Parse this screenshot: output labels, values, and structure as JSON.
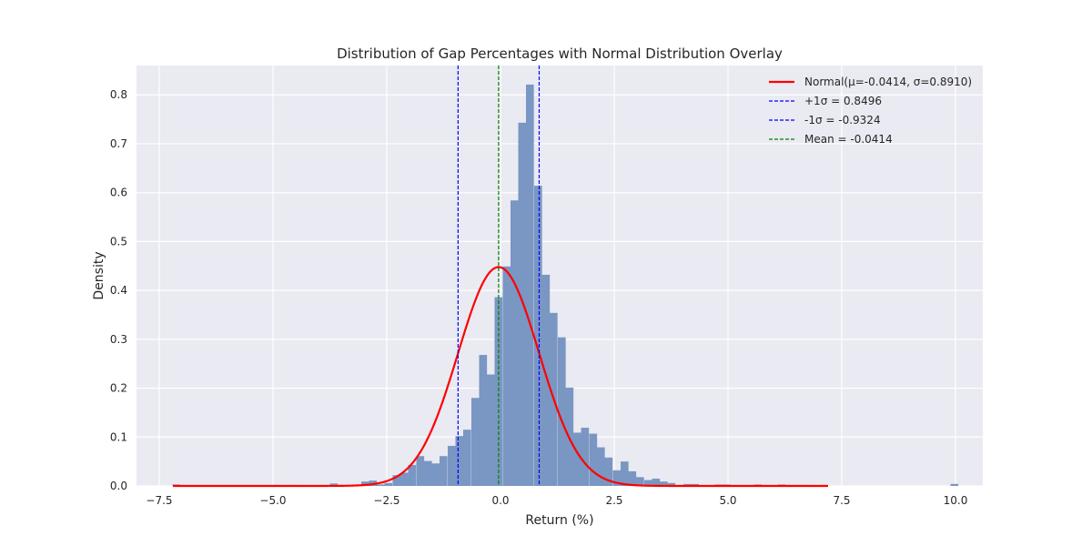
{
  "chart_data": {
    "type": "bar",
    "title": "Distribution of Gap Percentages with Normal Distribution Overlay",
    "xlabel": "Return (%)",
    "ylabel": "Density",
    "xlim": [
      -8.0,
      10.6
    ],
    "ylim": [
      0,
      0.86
    ],
    "xticks": [
      -7.5,
      -5.0,
      -2.5,
      0.0,
      2.5,
      5.0,
      7.5,
      10.0
    ],
    "xtick_labels": [
      "−7.5",
      "−5.0",
      "−2.5",
      "0.0",
      "2.5",
      "5.0",
      "7.5",
      "10.0"
    ],
    "yticks": [
      0.0,
      0.1,
      0.2,
      0.3,
      0.4,
      0.5,
      0.6,
      0.7,
      0.8
    ],
    "ytick_labels": [
      "0.0",
      "0.1",
      "0.2",
      "0.3",
      "0.4",
      "0.5",
      "0.6",
      "0.7",
      "0.8"
    ],
    "grid": true,
    "legend_position": "top-right",
    "colors": {
      "background": "#eaeaf2",
      "grid": "#ffffff",
      "bars": "#7a96c2",
      "normal_curve": "#ff0000",
      "sigma_lines": "#0000ff",
      "mean_line": "#008000"
    },
    "histogram": {
      "bin_width": 0.1729,
      "bin_starts": [
        -7.21,
        -7.04,
        -6.86,
        -6.69,
        -6.52,
        -6.35,
        -6.17,
        -6.0,
        -5.83,
        -5.66,
        -5.48,
        -5.31,
        -5.14,
        -4.96,
        -4.79,
        -4.62,
        -4.45,
        -4.27,
        -4.1,
        -3.93,
        -3.75,
        -3.58,
        -3.41,
        -3.24,
        -3.06,
        -2.89,
        -2.72,
        -2.55,
        -2.37,
        -2.2,
        -2.03,
        -1.85,
        -1.68,
        -1.51,
        -1.34,
        -1.16,
        -0.99,
        -0.82,
        -0.64,
        -0.47,
        -0.3,
        -0.13,
        0.05,
        0.22,
        0.39,
        0.56,
        0.74,
        0.91,
        1.08,
        1.26,
        1.43,
        1.6,
        1.77,
        1.95,
        2.12,
        2.29,
        2.47,
        2.64,
        2.81,
        2.98,
        3.16,
        3.33,
        3.5,
        3.67,
        3.85,
        4.02,
        4.19,
        4.37,
        4.54,
        4.71,
        4.88,
        5.06,
        5.23,
        5.4,
        5.57,
        5.75,
        5.92,
        6.09,
        6.27,
        6.44,
        6.61,
        6.78,
        6.96,
        7.13,
        7.3,
        7.47,
        7.65,
        7.82,
        7.99,
        8.17,
        8.34,
        8.51,
        8.68,
        8.86,
        9.03,
        9.2,
        9.37,
        9.55,
        9.72,
        9.89
      ],
      "densities": [
        0.003,
        0,
        0,
        0,
        0,
        0,
        0,
        0,
        0,
        0,
        0,
        0,
        0,
        0.002,
        0,
        0.002,
        0,
        0,
        0,
        0.002,
        0.005,
        0,
        0,
        0.002,
        0.009,
        0.011,
        0.003,
        0.006,
        0.022,
        0.027,
        0.043,
        0.061,
        0.051,
        0.046,
        0.061,
        0.082,
        0.102,
        0.115,
        0.18,
        0.268,
        0.228,
        0.386,
        0.449,
        0.584,
        0.743,
        0.821,
        0.614,
        0.432,
        0.354,
        0.304,
        0.201,
        0.109,
        0.119,
        0.107,
        0.079,
        0.058,
        0.032,
        0.05,
        0.03,
        0.018,
        0.012,
        0.015,
        0.009,
        0.006,
        0.002,
        0.004,
        0.004,
        0,
        0.001,
        0.003,
        0.003,
        0,
        0,
        0,
        0.003,
        0,
        0,
        0.003,
        0.002,
        0.002,
        0.002,
        0,
        0,
        0,
        0,
        0,
        0,
        0,
        0,
        0,
        0,
        0,
        0,
        0,
        0,
        0,
        0,
        0,
        0,
        0.004
      ]
    },
    "normal_curve": {
      "mu": -0.0414,
      "sigma": 0.891,
      "x_range": [
        -7.2,
        7.2
      ]
    },
    "reference_lines": [
      {
        "name": "+1σ",
        "x": 0.8496
      },
      {
        "name": "-1σ",
        "x": -0.9324
      },
      {
        "name": "Mean",
        "x": -0.0414
      }
    ],
    "legend": [
      {
        "label": "Normal(μ=-0.0414, σ=0.8910)",
        "style": "solid",
        "color": "#ff0000"
      },
      {
        "label": "+1σ = 0.8496",
        "style": "dashed",
        "color": "#0000ff"
      },
      {
        "label": "-1σ = -0.9324",
        "style": "dashed",
        "color": "#0000ff"
      },
      {
        "label": "Mean = -0.0414",
        "style": "dashed",
        "color": "#008000"
      }
    ]
  }
}
